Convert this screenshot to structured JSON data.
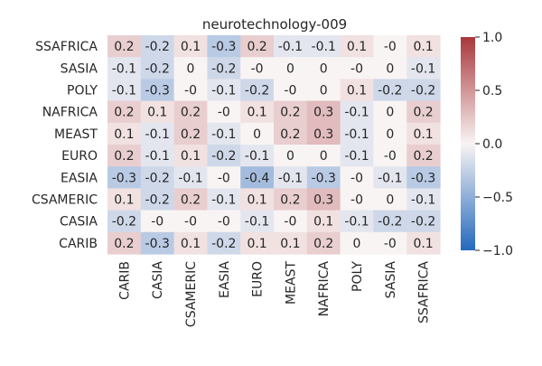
{
  "chart_data": {
    "type": "heatmap",
    "title": "neurotechnology-009",
    "xlabel": "",
    "ylabel": "",
    "x_categories": [
      "CARIB",
      "CASIA",
      "CSAMERIC",
      "EASIA",
      "EURO",
      "MEAST",
      "NAFRICA",
      "POLY",
      "SASIA",
      "SSAFRICA"
    ],
    "y_categories": [
      "SSAFRICA",
      "SASIA",
      "POLY",
      "NAFRICA",
      "MEAST",
      "EURO",
      "EASIA",
      "CSAMERIC",
      "CASIA",
      "CARIB"
    ],
    "values": [
      [
        0.2,
        -0.2,
        0.1,
        -0.3,
        0.2,
        -0.1,
        -0.1,
        0.1,
        0.0,
        0.1
      ],
      [
        -0.1,
        -0.2,
        0.0,
        -0.2,
        0.0,
        0.0,
        0.0,
        0.0,
        0.0,
        -0.1
      ],
      [
        -0.1,
        -0.3,
        0.0,
        -0.1,
        -0.2,
        0.0,
        0.0,
        0.1,
        -0.2,
        -0.2
      ],
      [
        0.2,
        0.1,
        0.2,
        0.0,
        0.1,
        0.2,
        0.3,
        -0.1,
        0.0,
        0.2
      ],
      [
        0.1,
        -0.1,
        0.2,
        -0.1,
        0.0,
        0.2,
        0.3,
        -0.1,
        0.0,
        0.1
      ],
      [
        0.2,
        -0.1,
        0.1,
        -0.2,
        -0.1,
        0.0,
        0.0,
        -0.1,
        0.0,
        0.2
      ],
      [
        -0.3,
        -0.2,
        -0.1,
        0.0,
        -0.4,
        -0.1,
        -0.3,
        0.0,
        -0.1,
        -0.3
      ],
      [
        0.1,
        -0.2,
        0.2,
        -0.1,
        0.1,
        0.2,
        0.3,
        0.0,
        0.0,
        -0.1
      ],
      [
        -0.2,
        0.0,
        0.0,
        0.0,
        -0.1,
        0.0,
        0.1,
        -0.1,
        -0.2,
        -0.2
      ],
      [
        0.2,
        -0.3,
        0.1,
        -0.2,
        0.1,
        0.1,
        0.2,
        0.0,
        0.0,
        0.1
      ]
    ],
    "cell_labels": [
      [
        "0.2",
        "-0.2",
        "0.1",
        "-0.3",
        "0.2",
        "-0.1",
        "-0.1",
        "0.1",
        "-0",
        "0.1"
      ],
      [
        "-0.1",
        "-0.2",
        "0",
        "-0.2",
        "-0",
        "0",
        "0",
        "-0",
        "0",
        "-0.1"
      ],
      [
        "-0.1",
        "-0.3",
        "-0",
        "-0.1",
        "-0.2",
        "-0",
        "0",
        "0.1",
        "-0.2",
        "-0.2"
      ],
      [
        "0.2",
        "0.1",
        "0.2",
        "-0",
        "0.1",
        "0.2",
        "0.3",
        "-0.1",
        "0",
        "0.2"
      ],
      [
        "0.1",
        "-0.1",
        "0.2",
        "-0.1",
        "0",
        "0.2",
        "0.3",
        "-0.1",
        "0",
        "0.1"
      ],
      [
        "0.2",
        "-0.1",
        "0.1",
        "-0.2",
        "-0.1",
        "0",
        "0",
        "-0.1",
        "-0",
        "0.2"
      ],
      [
        "-0.3",
        "-0.2",
        "-0.1",
        "-0",
        "-0.4",
        "-0.1",
        "-0.3",
        "-0",
        "-0.1",
        "-0.3"
      ],
      [
        "0.1",
        "-0.2",
        "0.2",
        "-0.1",
        "0.1",
        "0.2",
        "0.3",
        "-0",
        "0",
        "-0.1"
      ],
      [
        "-0.2",
        "-0",
        "-0",
        "-0",
        "-0.1",
        "-0",
        "0.1",
        "-0.1",
        "-0.2",
        "-0.2"
      ],
      [
        "0.2",
        "-0.3",
        "0.1",
        "-0.2",
        "0.1",
        "0.1",
        "0.2",
        "0",
        "-0",
        "0.1"
      ]
    ],
    "colormap": {
      "name": "vlag",
      "vmin": -1.0,
      "vmax": 1.0,
      "low_color": "#2369bd",
      "mid_color": "#f9f4f4",
      "high_color": "#a9373b"
    },
    "colorbar": {
      "ticks": [
        -1.0,
        -0.5,
        0.0,
        0.5,
        1.0
      ],
      "tick_labels": [
        "−1.0",
        "−0.5",
        "0.0",
        "0.5",
        "1.0"
      ]
    },
    "grid": false,
    "legend": "colorbar-right",
    "text_colors": {
      "dark": "#262626",
      "light": "#ffffff"
    }
  }
}
